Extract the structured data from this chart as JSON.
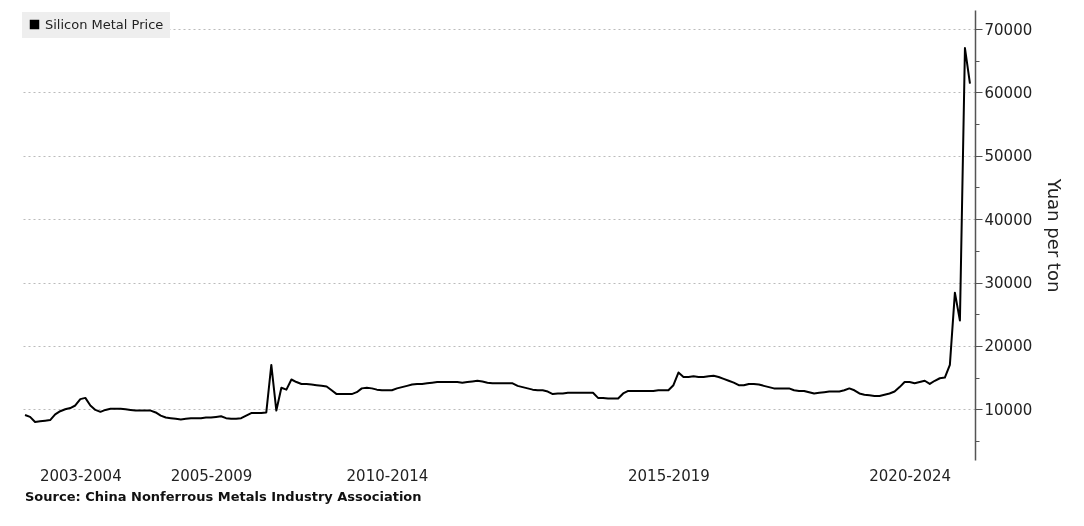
{
  "chart_data": {
    "type": "line",
    "ylabel": "Yuan per ton",
    "annotations": [
      "Source: China Nonferrous Metals Industry Association"
    ],
    "categories": [
      null,
      null,
      null,
      null,
      null,
      null,
      null,
      null,
      null,
      null,
      null,
      "2003-2004",
      null,
      null,
      null,
      null,
      null,
      null,
      null,
      null,
      null,
      null,
      null,
      null,
      null,
      null,
      null,
      null,
      null,
      null,
      null,
      null,
      null,
      null,
      null,
      null,
      null,
      "2005-2009",
      null,
      null,
      null,
      null,
      null,
      null,
      null,
      null,
      null,
      null,
      null,
      null,
      null,
      null,
      null,
      null,
      null,
      null,
      null,
      null,
      null,
      null,
      null,
      null,
      null,
      null,
      null,
      null,
      null,
      null,
      null,
      null,
      null,
      null,
      "2010-2014",
      null,
      null,
      null,
      null,
      null,
      null,
      null,
      null,
      null,
      null,
      null,
      null,
      null,
      null,
      null,
      null,
      null,
      null,
      null,
      null,
      null,
      null,
      null,
      null,
      null,
      null,
      null,
      null,
      null,
      null,
      null,
      null,
      null,
      null,
      null,
      null,
      null,
      null,
      null,
      null,
      null,
      null,
      null,
      null,
      null,
      null,
      null,
      null,
      null,
      null,
      null,
      null,
      null,
      null,
      null,
      "2015-2019",
      null,
      null,
      null,
      null,
      null,
      null,
      null,
      null,
      null,
      null,
      null,
      null,
      null,
      null,
      null,
      null,
      null,
      null,
      null,
      null,
      null,
      null,
      null,
      null,
      null,
      null,
      null,
      null,
      null,
      null,
      null,
      null,
      null,
      null,
      null,
      null,
      null,
      null,
      null,
      null,
      null,
      null,
      null,
      null,
      null,
      null,
      null,
      "2020-2024",
      null,
      null,
      null,
      null,
      null,
      null,
      null,
      null,
      null,
      null,
      null,
      null
    ],
    "series": [
      {
        "name": "Silicon Metal Price",
        "color": "#000000",
        "values": [
          9100,
          8800,
          8000,
          8100,
          8200,
          8300,
          9200,
          9700,
          10000,
          10200,
          10600,
          11600,
          11800,
          10600,
          9900,
          9600,
          9900,
          10100,
          10100,
          10100,
          10000,
          9900,
          9800,
          9800,
          9800,
          9800,
          9500,
          9000,
          8700,
          8600,
          8500,
          8400,
          8500,
          8600,
          8600,
          8600,
          8700,
          8700,
          8800,
          8900,
          8600,
          8500,
          8500,
          8600,
          9000,
          9400,
          9400,
          9400,
          9500,
          17000,
          9800,
          13400,
          13100,
          14700,
          14300,
          14000,
          14000,
          13900,
          13800,
          13700,
          13600,
          13000,
          12400,
          12400,
          12400,
          12400,
          12700,
          13300,
          13400,
          13300,
          13100,
          13000,
          13000,
          13000,
          13300,
          13500,
          13700,
          13900,
          14000,
          14000,
          14100,
          14200,
          14300,
          14300,
          14300,
          14300,
          14300,
          14200,
          14300,
          14400,
          14500,
          14400,
          14200,
          14100,
          14100,
          14100,
          14100,
          14100,
          13700,
          13500,
          13300,
          13100,
          13000,
          13000,
          12800,
          12400,
          12500,
          12500,
          12600,
          12600,
          12600,
          12600,
          12600,
          12600,
          11800,
          11800,
          11700,
          11700,
          11700,
          12500,
          12900,
          12900,
          12900,
          12900,
          12900,
          12900,
          13000,
          13000,
          13000,
          13800,
          15800,
          15100,
          15100,
          15200,
          15100,
          15100,
          15200,
          15300,
          15100,
          14800,
          14500,
          14200,
          13800,
          13800,
          14000,
          14000,
          13900,
          13700,
          13500,
          13300,
          13300,
          13300,
          13300,
          13000,
          12900,
          12900,
          12700,
          12500,
          12600,
          12700,
          12800,
          12800,
          12800,
          13000,
          13300,
          13000,
          12500,
          12300,
          12200,
          12100,
          12100,
          12300,
          12500,
          12800,
          13500,
          14300,
          14300,
          14100,
          14300,
          14500,
          14000,
          14500,
          14900,
          15000,
          17000,
          28400,
          24000,
          67000,
          61400
        ]
      }
    ],
    "ylim": [
      2000,
      73000
    ],
    "yticks": [
      {
        "value": 5000,
        "label": null
      },
      10000,
      {
        "value": 15000,
        "label": null
      },
      20000,
      {
        "value": 25000,
        "label": null
      },
      30000,
      {
        "value": 35000,
        "label": null
      },
      40000,
      {
        "value": 45000,
        "label": null
      },
      50000,
      {
        "value": 55000,
        "label": null
      },
      60000,
      {
        "value": 65000,
        "label": null
      },
      70000
    ],
    "grid": "y",
    "legend": "top left",
    "line_style": "solid"
  }
}
